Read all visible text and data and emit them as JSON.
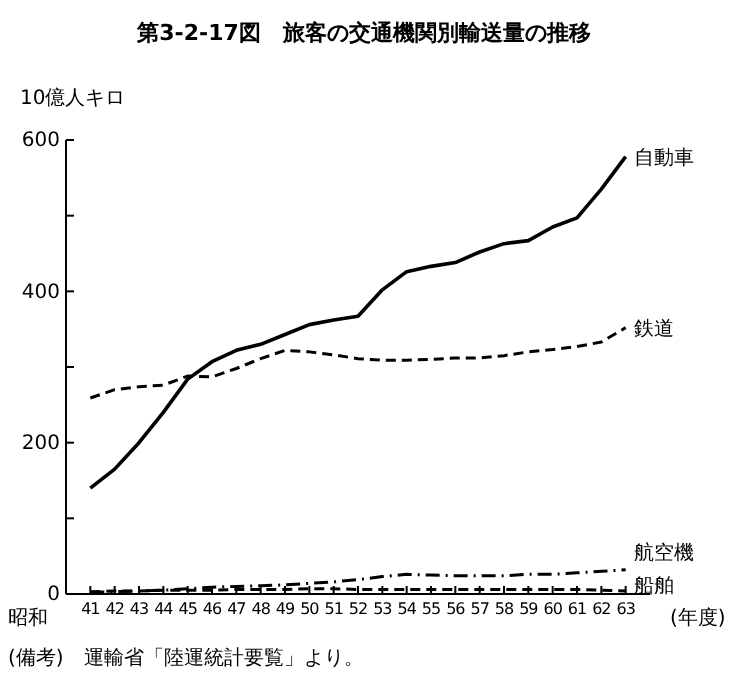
{
  "chart_data": {
    "type": "line",
    "title": "第3-2-17図　旅客の交通機関別輸送量の推移",
    "ylabel": "10億人キロ",
    "xlabel": "(年度)",
    "annotations": [
      "昭和",
      "(備考)　運輸省「陸運統計要覧」より。"
    ],
    "x": [
      41,
      42,
      43,
      44,
      45,
      46,
      47,
      48,
      49,
      50,
      51,
      52,
      53,
      54,
      55,
      56,
      57,
      58,
      59,
      60,
      61,
      62,
      63
    ],
    "xlim": [
      40,
      64
    ],
    "xticks": [
      41,
      42,
      43,
      44,
      45,
      46,
      47,
      48,
      49,
      50,
      51,
      52,
      53,
      54,
      55,
      56,
      57,
      58,
      59,
      60,
      61,
      62,
      63
    ],
    "ylim": [
      0,
      600
    ],
    "yticks": [
      0,
      {
        "value": 100,
        "label": null
      },
      200,
      {
        "value": 300,
        "label": null
      },
      400,
      {
        "value": 500,
        "label": null
      },
      600
    ],
    "grid": false,
    "marker": "none",
    "series": [
      {
        "name": "自動車",
        "color": "#000000",
        "line_style": "solid",
        "values": [
          140,
          165,
          200,
          240,
          284,
          307,
          322,
          330,
          343,
          356,
          362,
          367,
          402,
          426,
          433,
          438,
          452,
          463,
          467,
          485,
          497,
          535,
          578
        ]
      },
      {
        "name": "鉄道",
        "color": "#000000",
        "line_style": "dashed",
        "values": [
          259,
          270,
          274,
          276,
          288,
          287,
          298,
          311,
          322,
          320,
          316,
          311,
          309,
          309,
          310,
          312,
          312,
          315,
          320,
          323,
          327,
          333,
          352
        ]
      },
      {
        "name": "航空機",
        "color": "#000000",
        "line_style": "dashdot",
        "values": [
          2,
          3,
          4,
          5,
          7,
          9,
          10,
          11,
          12,
          14,
          16,
          19,
          23,
          26,
          25,
          24,
          24,
          24,
          26,
          26,
          28,
          30,
          32
        ]
      },
      {
        "name": "船舶",
        "color": "#000000",
        "line_style": "dashed",
        "values": [
          3,
          4,
          4,
          5,
          5,
          5,
          6,
          6,
          6,
          7,
          7,
          6,
          6,
          6,
          6,
          6,
          6,
          6,
          6,
          6,
          6,
          5,
          4
        ]
      }
    ]
  }
}
